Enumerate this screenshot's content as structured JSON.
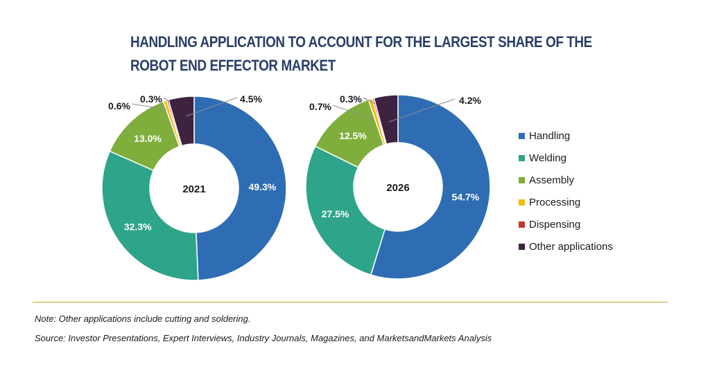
{
  "title_lines": [
    "HANDLING APPLICATION TO ACCOUNT FOR THE LARGEST SHARE OF THE",
    "ROBOT END EFFECTOR MARKET"
  ],
  "note": "Note: Other applications include cutting and soldering.",
  "source": "Source: Investor Presentations, Expert Interviews, Industry Journals, Magazines, and MarketsandMarkets Analysis",
  "colors": {
    "Handling": "#2e6db4",
    "Welding": "#2ea48a",
    "Assembly": "#7fae3c",
    "Processing": "#f2b90f",
    "Dispensing": "#c0392b",
    "Other applications": "#3d2340"
  },
  "chart_data": [
    {
      "type": "pie",
      "center_label": "2021",
      "categories": [
        "Handling",
        "Welding",
        "Assembly",
        "Processing",
        "Dispensing",
        "Other applications"
      ],
      "values": [
        49.3,
        32.3,
        13.0,
        0.6,
        0.3,
        4.5
      ],
      "labels": [
        "49.3%",
        "32.3%",
        "13.0%",
        "0.6%",
        "0.3%",
        "4.5%"
      ],
      "legend_position": "right"
    },
    {
      "type": "pie",
      "center_label": "2026",
      "categories": [
        "Handling",
        "Welding",
        "Assembly",
        "Processing",
        "Dispensing",
        "Other applications"
      ],
      "values": [
        54.7,
        27.5,
        12.5,
        0.7,
        0.3,
        4.2
      ],
      "labels": [
        "54.7%",
        "27.5%",
        "12.5%",
        "0.7%",
        "0.3%",
        "4.2%"
      ],
      "legend_position": "right"
    }
  ],
  "legend": [
    "Handling",
    "Welding",
    "Assembly",
    "Processing",
    "Dispensing",
    "Other applications"
  ]
}
